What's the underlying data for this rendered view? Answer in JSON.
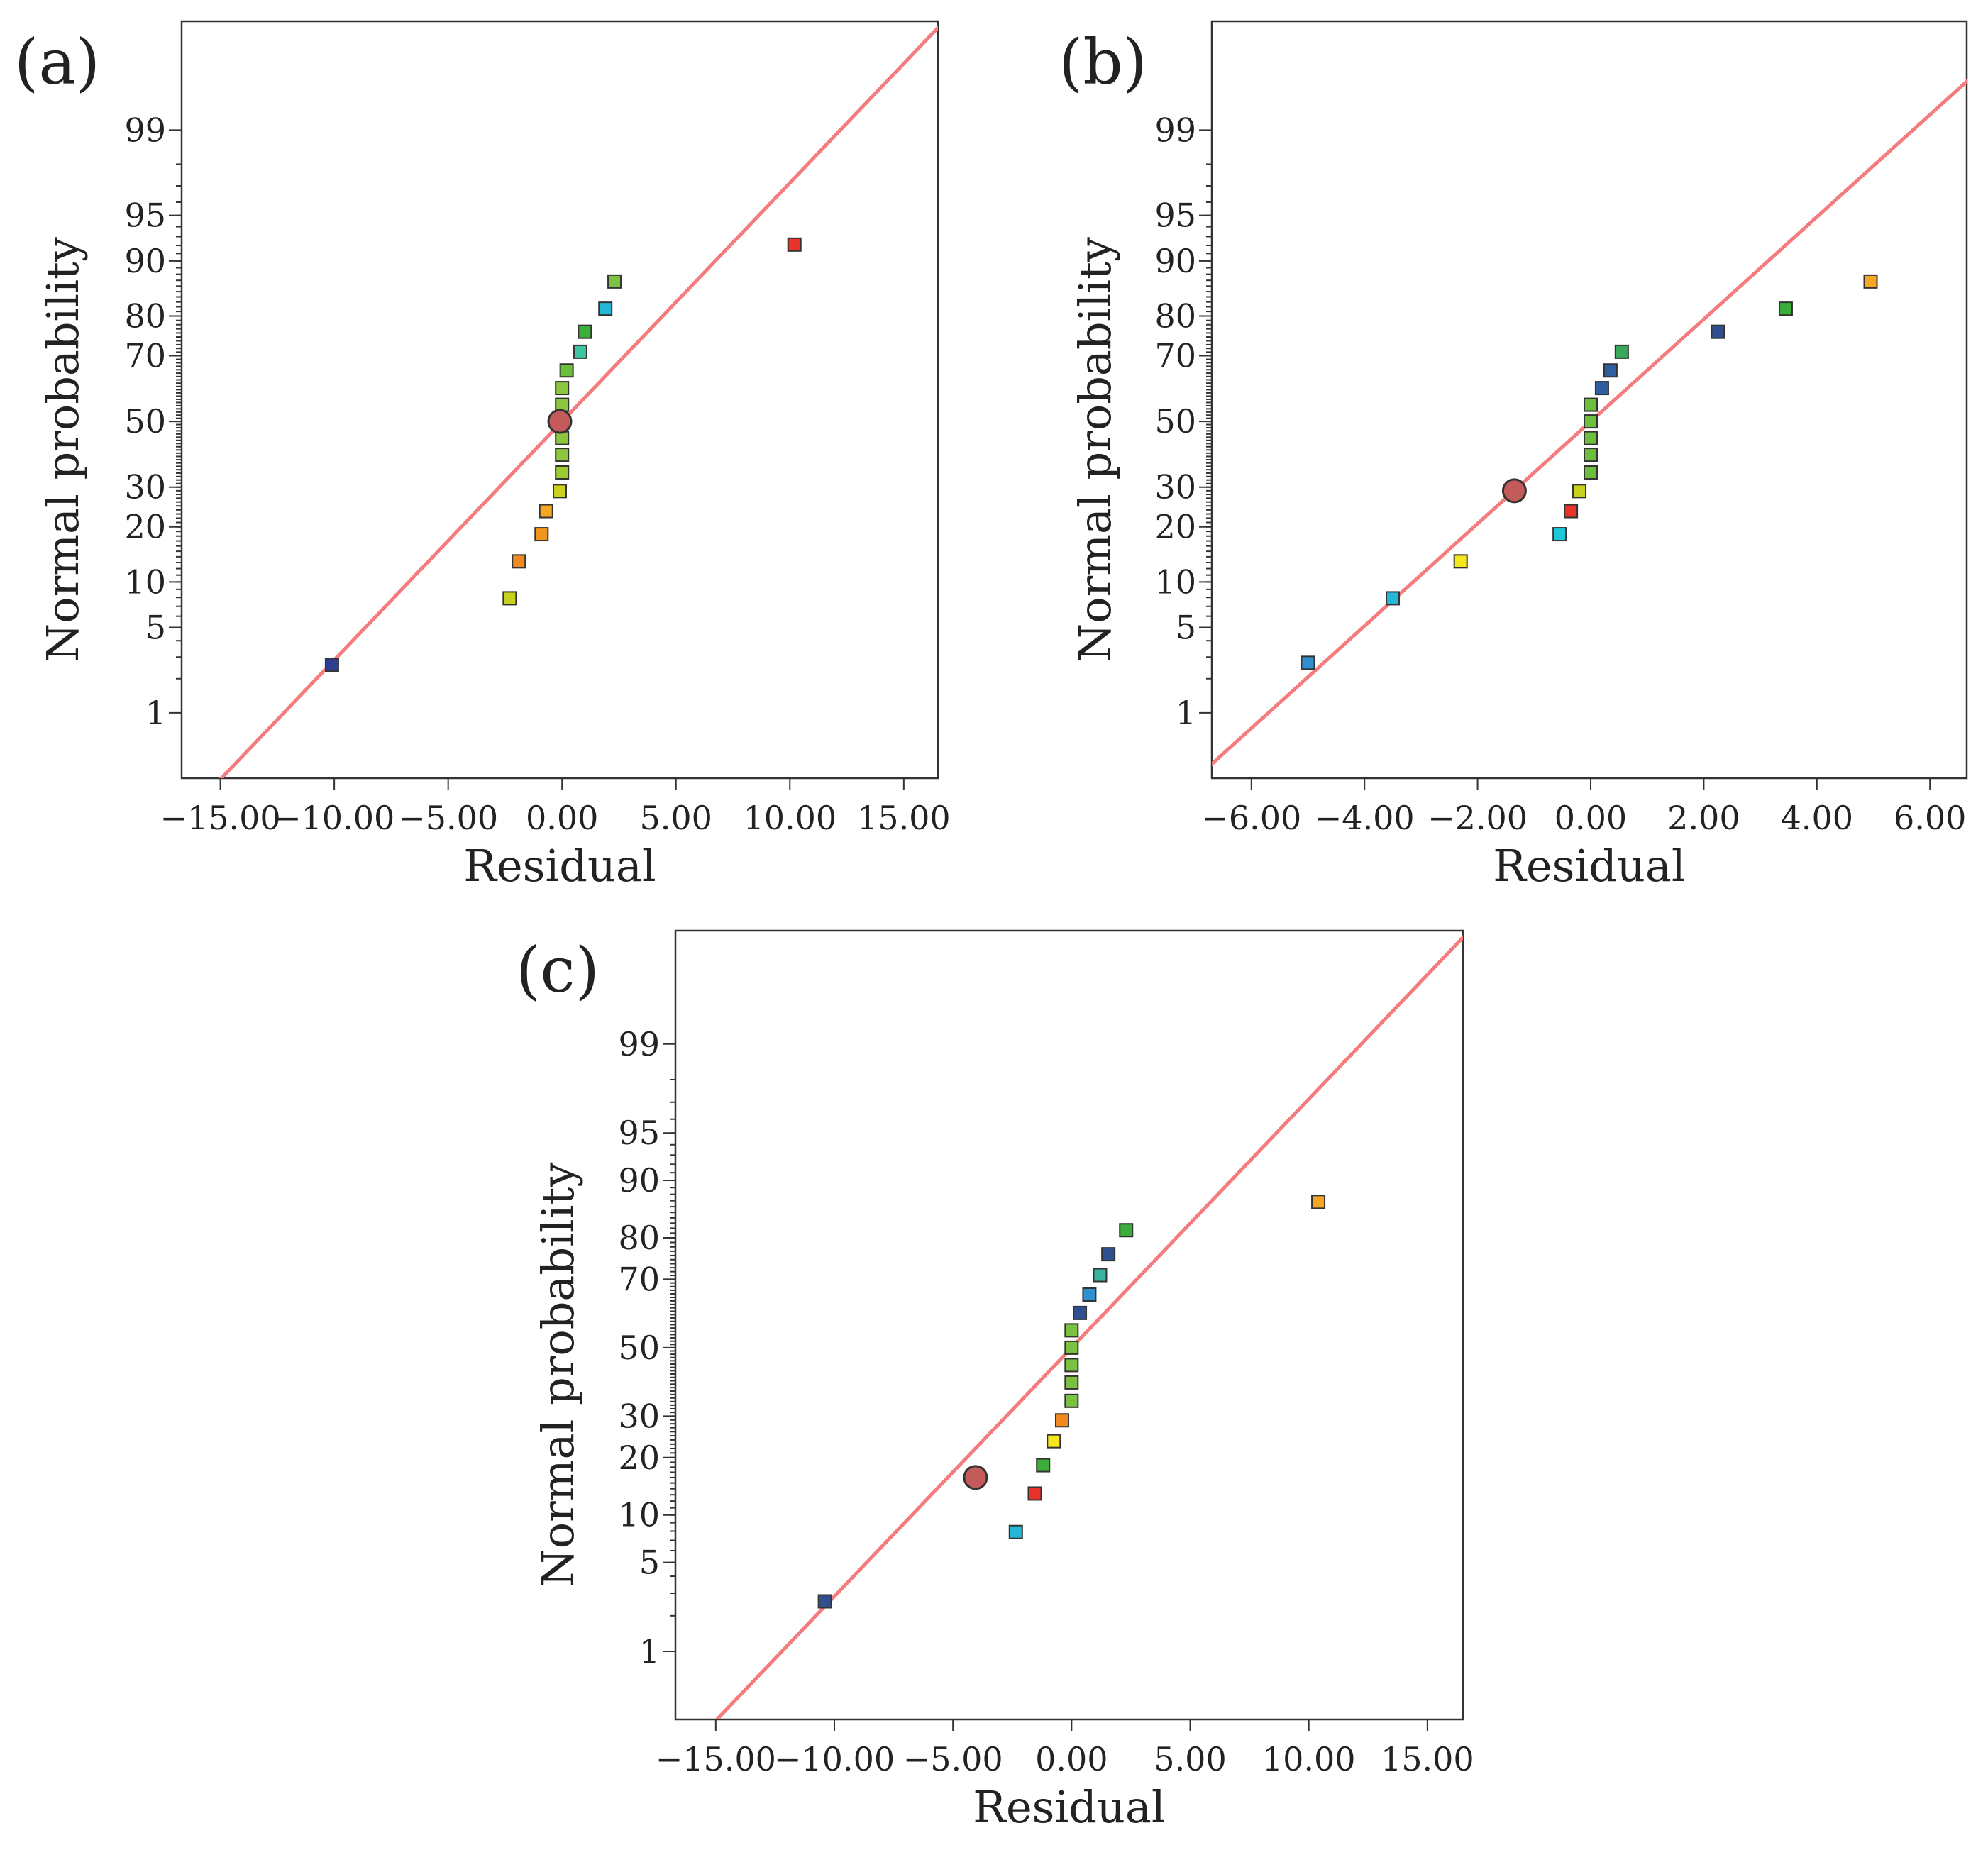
{
  "chart_data": [
    {
      "panel": "(a)",
      "type": "scatter",
      "title": "",
      "xlabel": "Residual",
      "ylabel": "Normal probability",
      "xlim": [
        -16.7,
        16.5
      ],
      "xticks": [
        -15,
        -10,
        -5,
        0,
        5,
        10,
        15
      ],
      "xtick_labels": [
        "−15.00",
        "−10.00",
        "−5.00",
        "0.00",
        "5.00",
        "10.00",
        "15.00"
      ],
      "yticks": [
        1,
        5,
        10,
        20,
        30,
        50,
        70,
        80,
        90,
        95,
        99
      ],
      "ylim_percent": [
        0.22,
        99.93
      ],
      "ref_line": {
        "mean": 0.0,
        "sd": 5.25,
        "color": "#f47c7c"
      },
      "highlight": {
        "residual": -0.1,
        "probability": 50,
        "color": "#c45a5a"
      },
      "points": [
        {
          "residual": -10.1,
          "probability": 2.6,
          "color": "#2f3f8f"
        },
        {
          "residual": -2.3,
          "probability": 7.9,
          "color": "#c8d21e"
        },
        {
          "residual": -1.9,
          "probability": 13.2,
          "color": "#f08a20"
        },
        {
          "residual": -0.9,
          "probability": 18.4,
          "color": "#f0961e"
        },
        {
          "residual": -0.7,
          "probability": 23.7,
          "color": "#f5a623"
        },
        {
          "residual": -0.1,
          "probability": 28.9,
          "color": "#c8d21e"
        },
        {
          "residual": 0.0,
          "probability": 34.2,
          "color": "#9ccc2e"
        },
        {
          "residual": 0.0,
          "probability": 39.5,
          "color": "#8cc63e"
        },
        {
          "residual": 0.0,
          "probability": 44.7,
          "color": "#8cc63e"
        },
        {
          "residual": 0.0,
          "probability": 50.0,
          "color": "#8cc63e"
        },
        {
          "residual": 0.0,
          "probability": 55.3,
          "color": "#8cc63e"
        },
        {
          "residual": 0.0,
          "probability": 60.5,
          "color": "#8cc63e"
        },
        {
          "residual": 0.2,
          "probability": 65.8,
          "color": "#6cbf3c"
        },
        {
          "residual": 0.8,
          "probability": 71.1,
          "color": "#3ec4a0"
        },
        {
          "residual": 1.0,
          "probability": 76.3,
          "color": "#3aad3a"
        },
        {
          "residual": 1.9,
          "probability": 81.6,
          "color": "#26b6d6"
        },
        {
          "residual": 2.3,
          "probability": 86.8,
          "color": "#7cc242"
        },
        {
          "residual": 10.2,
          "probability": 92.1,
          "color": "#e8322a"
        }
      ]
    },
    {
      "panel": "(b)",
      "type": "scatter",
      "title": "",
      "xlabel": "Residual",
      "ylabel": "Normal probability",
      "xlim": [
        -6.7,
        6.65
      ],
      "xticks": [
        -6,
        -4,
        -2,
        0,
        2,
        4,
        6
      ],
      "xtick_labels": [
        "−6.00",
        "−4.00",
        "−2.00",
        "0.00",
        "2.00",
        "4.00",
        "6.00"
      ],
      "yticks": [
        1,
        5,
        10,
        20,
        30,
        50,
        70,
        80,
        90,
        95,
        99
      ],
      "ylim_percent": [
        0.22,
        99.93
      ],
      "ref_line": {
        "mean": 0.0,
        "sd": 2.45,
        "color": "#f47c7c"
      },
      "highlight": {
        "residual": -1.35,
        "probability": 29,
        "color": "#c45a5a"
      },
      "points": [
        {
          "residual": -5.0,
          "probability": 2.7,
          "color": "#2f8fd0"
        },
        {
          "residual": -3.5,
          "probability": 7.9,
          "color": "#26b6d6"
        },
        {
          "residual": -2.3,
          "probability": 13.2,
          "color": "#f5e61e"
        },
        {
          "residual": -0.55,
          "probability": 18.4,
          "color": "#1ec8d8"
        },
        {
          "residual": -0.35,
          "probability": 23.7,
          "color": "#e8322a"
        },
        {
          "residual": -0.2,
          "probability": 28.9,
          "color": "#c8d21e"
        },
        {
          "residual": 0.0,
          "probability": 34.2,
          "color": "#6cbf3c"
        },
        {
          "residual": 0.0,
          "probability": 39.5,
          "color": "#6cbf3c"
        },
        {
          "residual": 0.0,
          "probability": 44.7,
          "color": "#6cbf3c"
        },
        {
          "residual": 0.0,
          "probability": 50.0,
          "color": "#6cbf3c"
        },
        {
          "residual": 0.0,
          "probability": 55.3,
          "color": "#6cbf3c"
        },
        {
          "residual": 0.2,
          "probability": 60.5,
          "color": "#2f5fa0"
        },
        {
          "residual": 0.35,
          "probability": 65.8,
          "color": "#2f5fa0"
        },
        {
          "residual": 0.55,
          "probability": 71.1,
          "color": "#3aa85a"
        },
        {
          "residual": 2.25,
          "probability": 76.3,
          "color": "#2f4f8f"
        },
        {
          "residual": 3.45,
          "probability": 81.6,
          "color": "#3aad3a"
        },
        {
          "residual": 4.95,
          "probability": 86.8,
          "color": "#f5a623"
        }
      ]
    },
    {
      "panel": "(c)",
      "type": "scatter",
      "title": "",
      "xlabel": "Residual",
      "ylabel": "Normal probability",
      "xlim": [
        -16.7,
        16.5
      ],
      "xticks": [
        -15,
        -10,
        -5,
        0,
        5,
        10,
        15
      ],
      "xtick_labels": [
        "−15.00",
        "−10.00",
        "−5.00",
        "0.00",
        "5.00",
        "10.00",
        "15.00"
      ],
      "yticks": [
        1,
        5,
        10,
        20,
        30,
        50,
        70,
        80,
        90,
        95,
        99
      ],
      "ylim_percent": [
        0.22,
        99.93
      ],
      "ref_line": {
        "mean": 0.0,
        "sd": 5.25,
        "color": "#f47c7c"
      },
      "highlight": {
        "residual": -4.05,
        "probability": 16,
        "color": "#c45a5a"
      },
      "points": [
        {
          "residual": -10.4,
          "probability": 2.6,
          "color": "#2f4f8f"
        },
        {
          "residual": -2.35,
          "probability": 7.9,
          "color": "#26b6d6"
        },
        {
          "residual": -1.55,
          "probability": 13.2,
          "color": "#e8322a"
        },
        {
          "residual": -1.2,
          "probability": 18.4,
          "color": "#3aad3a"
        },
        {
          "residual": -0.75,
          "probability": 23.7,
          "color": "#f5e61e"
        },
        {
          "residual": -0.4,
          "probability": 28.9,
          "color": "#f08a20"
        },
        {
          "residual": 0.0,
          "probability": 34.2,
          "color": "#7cc242"
        },
        {
          "residual": 0.0,
          "probability": 39.5,
          "color": "#7cc242"
        },
        {
          "residual": 0.0,
          "probability": 44.7,
          "color": "#7cc242"
        },
        {
          "residual": 0.0,
          "probability": 50.0,
          "color": "#7cc242"
        },
        {
          "residual": 0.0,
          "probability": 55.3,
          "color": "#7cc242"
        },
        {
          "residual": 0.35,
          "probability": 60.5,
          "color": "#2f4f8f"
        },
        {
          "residual": 0.75,
          "probability": 65.8,
          "color": "#2f8fd0"
        },
        {
          "residual": 1.2,
          "probability": 71.1,
          "color": "#3ab4a0"
        },
        {
          "residual": 1.55,
          "probability": 76.3,
          "color": "#2f4f8f"
        },
        {
          "residual": 2.3,
          "probability": 81.6,
          "color": "#3aad3a"
        },
        {
          "residual": 10.4,
          "probability": 86.8,
          "color": "#f5a623"
        }
      ]
    }
  ]
}
